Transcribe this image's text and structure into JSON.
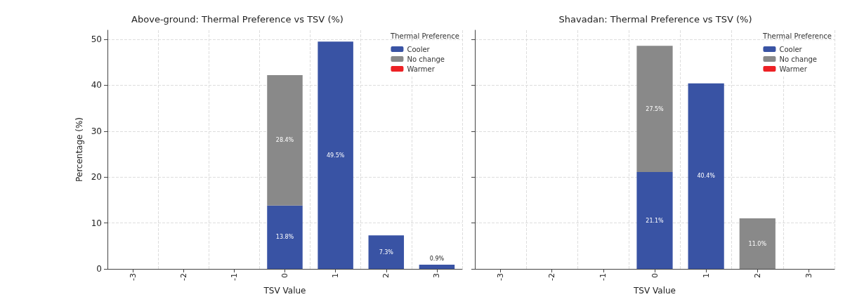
{
  "chart_data": [
    {
      "type": "bar",
      "title": "Above-ground: Thermal Preference vs TSV (%)",
      "xlabel": "TSV Value",
      "ylabel": "Percentage (%)",
      "legend_title": "Thermal Preference",
      "categories": [
        "-3",
        "-2",
        "-1",
        "0",
        "1",
        "2",
        "3"
      ],
      "stacked": true,
      "ylim": [
        0,
        52
      ],
      "yticks": [
        0,
        10,
        20,
        30,
        40,
        50
      ],
      "grid": true,
      "legend": "top right",
      "series": [
        {
          "name": "Cooler",
          "color": "#3953a4",
          "values": [
            0,
            0,
            0,
            13.8,
            49.5,
            7.3,
            0.9
          ],
          "value_labels": [
            null,
            null,
            null,
            "13.8%",
            "49.5%",
            "7.3%",
            "0.9%"
          ]
        },
        {
          "name": "No change",
          "color": "#898989",
          "values": [
            0,
            0,
            0,
            28.4,
            0,
            0,
            0
          ],
          "value_labels": [
            null,
            null,
            null,
            "28.4%",
            null,
            null,
            null
          ]
        },
        {
          "name": "Warmer",
          "color": "#ed2024",
          "values": [
            0,
            0,
            0,
            0,
            0,
            0,
            0
          ]
        }
      ]
    },
    {
      "type": "bar",
      "title": "Shavadan: Thermal Preference vs TSV (%)",
      "xlabel": "TSV Value",
      "legend_title": "Thermal Preference",
      "categories": [
        "-3",
        "-2",
        "-1",
        "0",
        "1",
        "2",
        "3"
      ],
      "stacked": true,
      "ylim": [
        0,
        52
      ],
      "yticks": [
        0,
        10,
        20,
        30,
        40,
        50
      ],
      "tick_labels": "x",
      "grid": true,
      "legend": "top right",
      "series": [
        {
          "name": "Cooler",
          "color": "#3953a4",
          "values": [
            0,
            0,
            0,
            21.1,
            40.4,
            0,
            0
          ],
          "value_labels": [
            null,
            null,
            null,
            "21.1%",
            "40.4%",
            null,
            null
          ]
        },
        {
          "name": "No change",
          "color": "#898989",
          "values": [
            0,
            0,
            0,
            27.5,
            0,
            11.0,
            0
          ],
          "value_labels": [
            null,
            null,
            null,
            "27.5%",
            null,
            "11.0%",
            null
          ]
        },
        {
          "name": "Warmer",
          "color": "#ed2024",
          "values": [
            0,
            0,
            0,
            0,
            0,
            0,
            0
          ]
        }
      ]
    }
  ]
}
